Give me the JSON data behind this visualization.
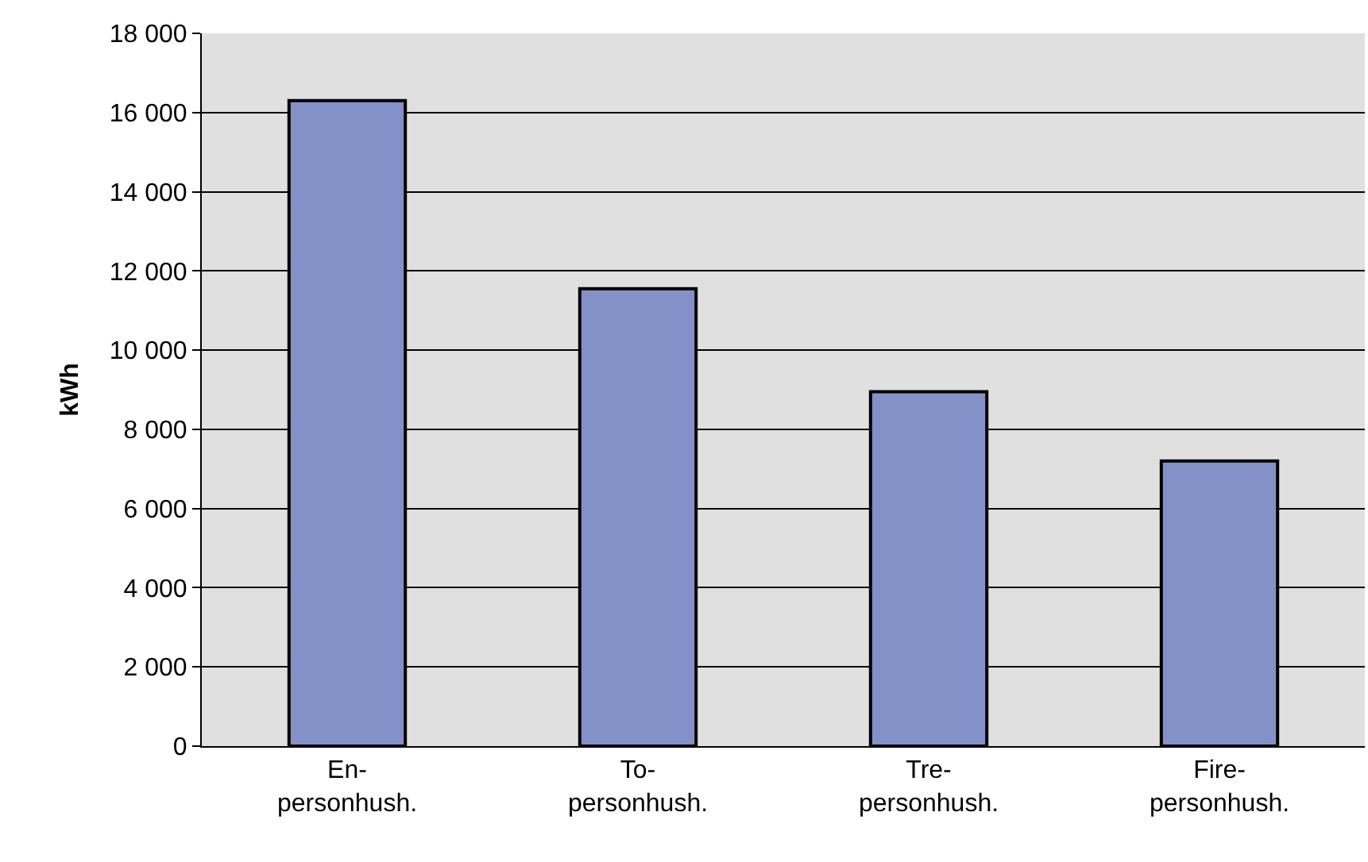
{
  "chart_data": {
    "type": "bar",
    "ylabel": "kWh",
    "categories": [
      "En-\npersonhush.",
      "To-\npersonhush.",
      "Tre-\npersonhush.",
      "Fire-\npersonhush."
    ],
    "values": [
      16300,
      11550,
      8950,
      7200
    ],
    "color": "#8491c9",
    "ylim": [
      0,
      18000
    ],
    "yticks": [
      {
        "value": 0,
        "label": "0"
      },
      {
        "value": 2000,
        "label": "2 000"
      },
      {
        "value": 4000,
        "label": "4 000"
      },
      {
        "value": 6000,
        "label": "6 000"
      },
      {
        "value": 8000,
        "label": "8 000"
      },
      {
        "value": 10000,
        "label": "10 000"
      },
      {
        "value": 12000,
        "label": "12 000"
      },
      {
        "value": 14000,
        "label": "14 000"
      },
      {
        "value": 16000,
        "label": "16 000"
      },
      {
        "value": 18000,
        "label": "18 000"
      }
    ],
    "grid": "y"
  }
}
